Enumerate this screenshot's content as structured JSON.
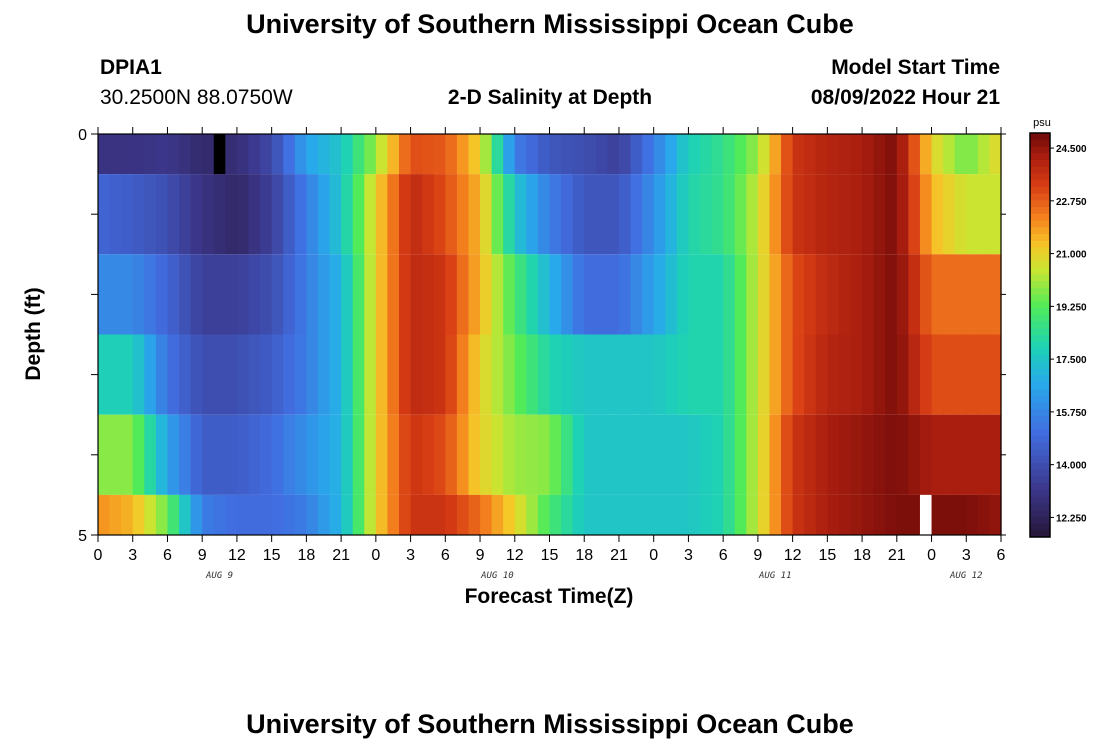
{
  "header": {
    "title": "University of Southern Mississippi Ocean Cube",
    "footer_title": "University of Southern Mississippi Ocean Cube",
    "station": "DPIA1",
    "coords": "30.2500N  88.0750W",
    "subtitle": "2-D Salinity at Depth",
    "start_label": "Model Start Time",
    "start_value": "08/09/2022 Hour 21"
  },
  "chart_data": {
    "type": "heatmap",
    "title": "2-D Salinity at Depth",
    "xlabel": "Forecast Time(Z)",
    "ylabel": "Depth (ft)",
    "units": "psu",
    "ylim": [
      0,
      5
    ],
    "y_tick_labels": [
      "0",
      "5"
    ],
    "x_tick_labels": [
      "0",
      "3",
      "6",
      "9",
      "12",
      "15",
      "18",
      "21",
      "0",
      "3",
      "6",
      "9",
      "12",
      "15",
      "18",
      "21",
      "0",
      "3",
      "6",
      "9",
      "12",
      "15",
      "18",
      "21",
      "0",
      "3",
      "6"
    ],
    "day_labels": [
      "AUG 9",
      "AUG 10",
      "AUG 11",
      "AUG 12"
    ],
    "day_label_hours": [
      10.5,
      34.5,
      58.5,
      75
    ],
    "hours_range": [
      0,
      78
    ],
    "depth_layers": [
      "0-0.5",
      "0.5-1.5",
      "1.5-2.5",
      "2.5-3.5",
      "3.5-4.5",
      "4.5-5"
    ],
    "colorbar": {
      "min": 11.6,
      "max": 25.0,
      "tick_labels": [
        "24.500",
        "22.750",
        "21.000",
        "19.250",
        "17.500",
        "15.750",
        "14.000",
        "12.250"
      ],
      "tick_values": [
        24.5,
        22.75,
        21.0,
        19.25,
        17.5,
        15.75,
        14.0,
        12.25
      ]
    },
    "anchor_hours": [
      0,
      3,
      6,
      9,
      12,
      15,
      18,
      21,
      24,
      27,
      30,
      33,
      36,
      39,
      42,
      45,
      48,
      51,
      54,
      57,
      60,
      63,
      66,
      69,
      72,
      75,
      78
    ],
    "layer_anchor_values": [
      [
        13.0,
        13.0,
        13.2,
        12.6,
        12.8,
        13.8,
        16.5,
        17.5,
        20.0,
        23.0,
        22.8,
        21.0,
        15.5,
        14.3,
        14.0,
        13.5,
        15.5,
        17.8,
        18.5,
        20.0,
        23.5,
        24.0,
        24.2,
        24.8,
        21.0,
        19.5,
        21.0
      ],
      [
        14.8,
        14.5,
        14.0,
        13.0,
        12.5,
        13.5,
        15.5,
        17.5,
        21.0,
        23.8,
        23.0,
        21.5,
        17.5,
        15.5,
        14.3,
        14.3,
        16.0,
        18.0,
        18.5,
        20.5,
        23.5,
        24.0,
        24.2,
        24.8,
        21.5,
        20.5,
        20.5
      ],
      [
        15.8,
        15.8,
        14.8,
        13.5,
        13.5,
        14.0,
        15.5,
        17.0,
        21.0,
        23.8,
        23.5,
        21.5,
        19.0,
        17.0,
        15.0,
        15.0,
        16.5,
        18.0,
        18.0,
        20.5,
        23.0,
        23.8,
        24.2,
        24.8,
        22.5,
        22.5,
        22.5
      ],
      [
        17.8,
        17.8,
        15.2,
        14.0,
        14.0,
        14.5,
        15.5,
        17.0,
        21.0,
        23.8,
        23.5,
        21.0,
        19.5,
        18.0,
        17.5,
        17.5,
        17.5,
        18.0,
        18.0,
        20.5,
        23.0,
        24.0,
        24.2,
        24.8,
        23.0,
        23.0,
        23.0
      ],
      [
        19.8,
        19.8,
        16.5,
        14.5,
        14.5,
        15.0,
        16.0,
        17.0,
        21.0,
        23.5,
        23.0,
        21.0,
        20.0,
        19.8,
        17.5,
        17.5,
        17.5,
        17.5,
        18.0,
        20.5,
        23.5,
        24.2,
        24.5,
        24.8,
        24.2,
        24.2,
        24.2
      ],
      [
        22.0,
        21.5,
        19.5,
        15.5,
        15.0,
        15.0,
        15.5,
        17.0,
        21.0,
        23.5,
        23.5,
        22.5,
        21.0,
        19.0,
        17.5,
        17.5,
        17.5,
        17.5,
        18.0,
        20.5,
        23.5,
        24.2,
        24.5,
        24.8,
        24.8,
        24.8,
        24.5
      ]
    ],
    "missing_cells": [
      {
        "layer": 0,
        "hour": 10,
        "color": "#000000"
      },
      {
        "layer": 5,
        "hour": 71,
        "color": "#ffffff"
      }
    ]
  }
}
